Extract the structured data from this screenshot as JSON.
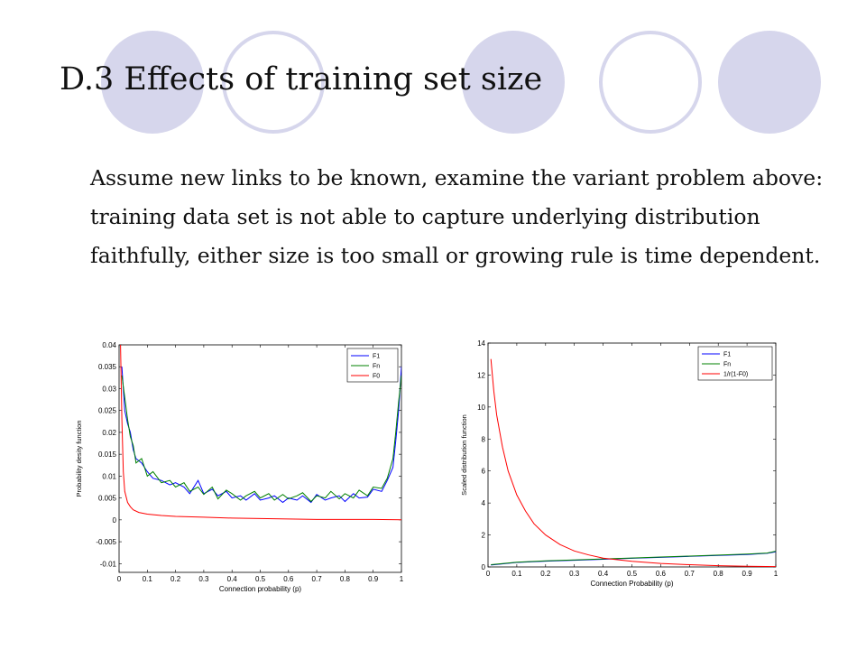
{
  "slide": {
    "title": "D.3 Effects of training set size",
    "body": "Assume new links to be known, examine the variant problem above: training data set is not able to capture underlying distribution faithfully, either size is too small or growing rule is time dependent.",
    "decor_color": "#d6d6ec"
  },
  "chart_data": [
    {
      "type": "line",
      "xlabel": "Connection probability (p)",
      "ylabel": "Probability desity function",
      "xlim": [
        0,
        1
      ],
      "ylim": [
        -0.012,
        0.04
      ],
      "xticks": [
        "0",
        "0.1",
        "0.2",
        "0.3",
        "0.4",
        "0.5",
        "0.6",
        "0.7",
        "0.8",
        "0.9",
        "1"
      ],
      "yticks": [
        "0.04",
        "0.035",
        "0.03",
        "0.025",
        "0.02",
        "0.015",
        "0.01",
        "0.005",
        "0",
        "-0.005",
        "-0.01"
      ],
      "legend_position": "top-right",
      "series": [
        {
          "name": "F1",
          "color": "#0000ff",
          "x": [
            0.01,
            0.02,
            0.03,
            0.04,
            0.05,
            0.06,
            0.08,
            0.1,
            0.12,
            0.15,
            0.18,
            0.2,
            0.23,
            0.25,
            0.28,
            0.3,
            0.33,
            0.35,
            0.38,
            0.4,
            0.43,
            0.45,
            0.48,
            0.5,
            0.53,
            0.55,
            0.58,
            0.6,
            0.63,
            0.65,
            0.68,
            0.7,
            0.73,
            0.75,
            0.78,
            0.8,
            0.83,
            0.85,
            0.88,
            0.9,
            0.93,
            0.95,
            0.97,
            0.98,
            0.99,
            1.0
          ],
          "y": [
            0.035,
            0.025,
            0.022,
            0.02,
            0.016,
            0.014,
            0.013,
            0.011,
            0.0095,
            0.009,
            0.008,
            0.0085,
            0.0075,
            0.006,
            0.009,
            0.006,
            0.007,
            0.0055,
            0.0065,
            0.005,
            0.0055,
            0.0045,
            0.006,
            0.0045,
            0.005,
            0.0055,
            0.004,
            0.005,
            0.0045,
            0.0055,
            0.004,
            0.0058,
            0.0045,
            0.005,
            0.0055,
            0.0042,
            0.006,
            0.005,
            0.0052,
            0.007,
            0.0065,
            0.009,
            0.012,
            0.018,
            0.025,
            0.035
          ]
        },
        {
          "name": "Fn",
          "color": "#008000",
          "x": [
            0.01,
            0.02,
            0.03,
            0.04,
            0.05,
            0.06,
            0.08,
            0.1,
            0.12,
            0.15,
            0.18,
            0.2,
            0.23,
            0.25,
            0.28,
            0.3,
            0.33,
            0.35,
            0.38,
            0.4,
            0.43,
            0.45,
            0.48,
            0.5,
            0.53,
            0.55,
            0.58,
            0.6,
            0.63,
            0.65,
            0.68,
            0.7,
            0.73,
            0.75,
            0.78,
            0.8,
            0.83,
            0.85,
            0.88,
            0.9,
            0.93,
            0.95,
            0.97,
            0.98,
            0.99,
            1.0
          ],
          "y": [
            0.033,
            0.028,
            0.023,
            0.019,
            0.017,
            0.013,
            0.014,
            0.01,
            0.011,
            0.0085,
            0.009,
            0.0075,
            0.0085,
            0.0065,
            0.0075,
            0.0058,
            0.0075,
            0.0048,
            0.0068,
            0.006,
            0.0045,
            0.0055,
            0.0065,
            0.005,
            0.006,
            0.0045,
            0.0058,
            0.0048,
            0.0055,
            0.0062,
            0.0042,
            0.0055,
            0.005,
            0.0065,
            0.0048,
            0.006,
            0.005,
            0.0068,
            0.0055,
            0.0075,
            0.0072,
            0.0095,
            0.014,
            0.02,
            0.027,
            0.033
          ]
        },
        {
          "name": "F0",
          "color": "#ff0000",
          "x": [
            0.005,
            0.01,
            0.015,
            0.02,
            0.03,
            0.04,
            0.05,
            0.07,
            0.1,
            0.15,
            0.2,
            0.3,
            0.4,
            0.5,
            0.6,
            0.7,
            0.8,
            0.9,
            1.0
          ],
          "y": [
            0.04,
            0.023,
            0.011,
            0.0065,
            0.004,
            0.003,
            0.0023,
            0.0017,
            0.0013,
            0.001,
            0.0008,
            0.0006,
            0.0004,
            0.0003,
            0.0002,
            0.0001,
            0.0001,
            0.0001,
            0.0
          ]
        }
      ]
    },
    {
      "type": "line",
      "xlabel": "Connection Probability (p)",
      "ylabel": "Scaled distribution function",
      "xlim": [
        0,
        1
      ],
      "ylim": [
        0,
        14
      ],
      "xticks": [
        "0",
        "0.1",
        "0.2",
        "0.3",
        "0.4",
        "0.5",
        "0.6",
        "0.7",
        "0.8",
        "0.9",
        "1"
      ],
      "yticks": [
        "14",
        "12",
        "10",
        "8",
        "6",
        "4",
        "2",
        "0"
      ],
      "legend_position": "top-right",
      "series": [
        {
          "name": "F1",
          "color": "#0000ff",
          "x": [
            0.01,
            0.1,
            0.2,
            0.3,
            0.4,
            0.5,
            0.6,
            0.7,
            0.8,
            0.9,
            0.97,
            1.0
          ],
          "y": [
            0.12,
            0.28,
            0.36,
            0.42,
            0.48,
            0.54,
            0.6,
            0.66,
            0.72,
            0.78,
            0.85,
            0.95
          ]
        },
        {
          "name": "Fn",
          "color": "#008000",
          "x": [
            0.01,
            0.1,
            0.2,
            0.3,
            0.4,
            0.5,
            0.6,
            0.7,
            0.8,
            0.9,
            0.97,
            1.0
          ],
          "y": [
            0.14,
            0.3,
            0.38,
            0.44,
            0.5,
            0.56,
            0.62,
            0.68,
            0.74,
            0.8,
            0.87,
            0.98
          ]
        },
        {
          "name": "1/r(1-F0)",
          "color": "#ff0000",
          "x": [
            0.01,
            0.02,
            0.03,
            0.05,
            0.07,
            0.1,
            0.13,
            0.16,
            0.2,
            0.25,
            0.3,
            0.35,
            0.4,
            0.5,
            0.6,
            0.7,
            0.8,
            0.9,
            1.0
          ],
          "y": [
            13.0,
            11.0,
            9.5,
            7.5,
            6.0,
            4.5,
            3.5,
            2.7,
            2.0,
            1.4,
            1.0,
            0.75,
            0.55,
            0.35,
            0.22,
            0.14,
            0.08,
            0.04,
            0.02
          ]
        }
      ]
    }
  ]
}
